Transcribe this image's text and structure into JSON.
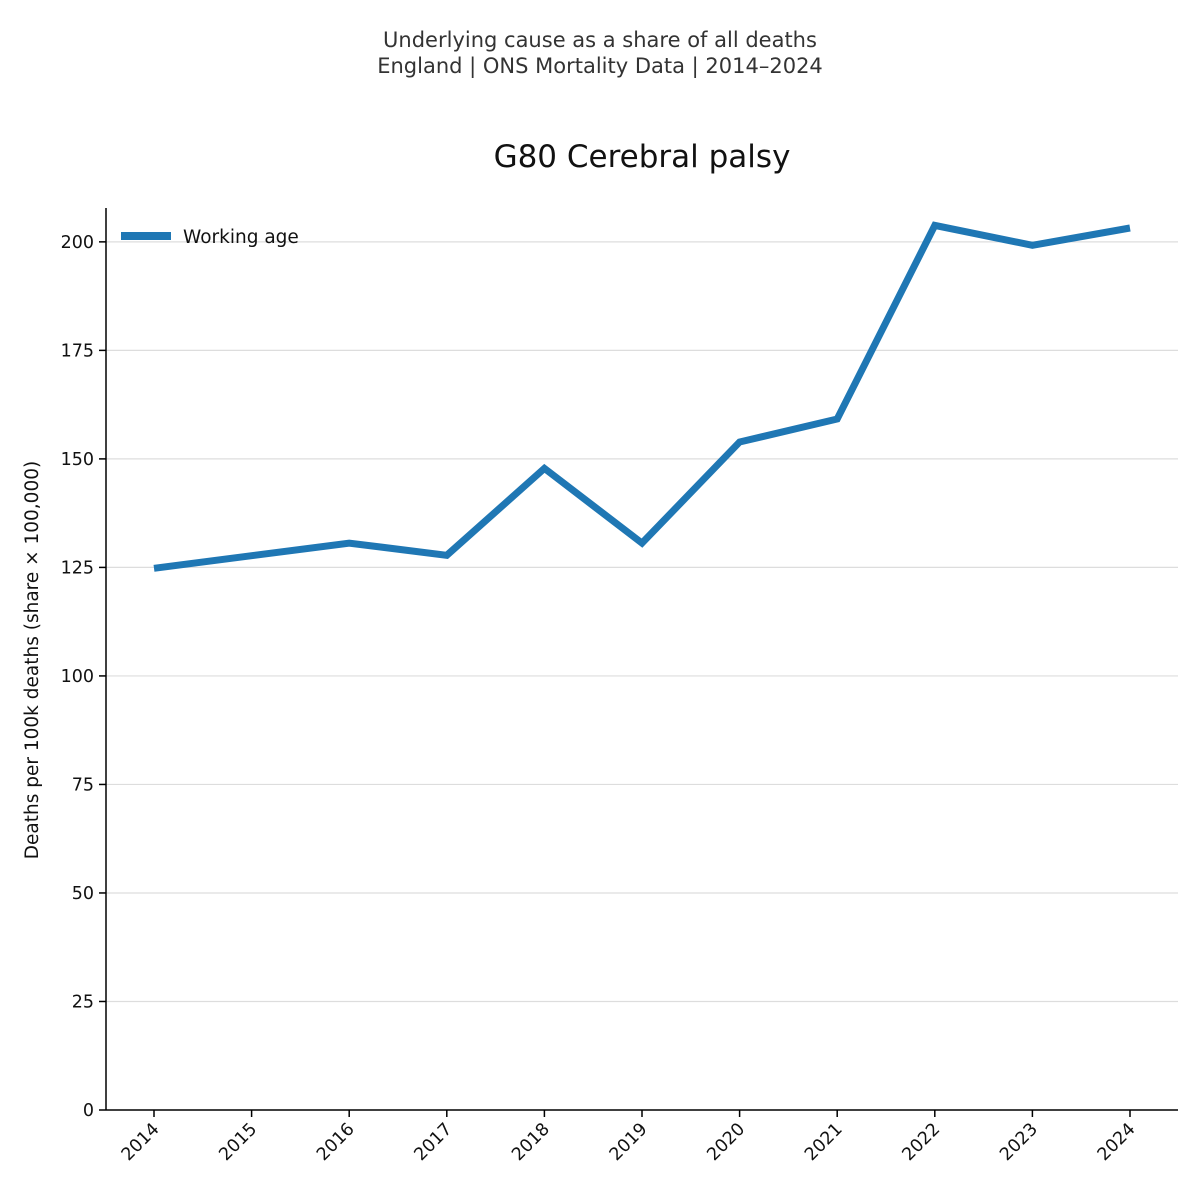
{
  "header": {
    "suptitle_line1": "Underlying cause as a share of all deaths",
    "suptitle_line2": "England | ONS Mortality Data | 2014–2024"
  },
  "chart_data": {
    "type": "line",
    "title": "G80 Cerebral palsy",
    "xlabel": "",
    "ylabel": "Deaths per 100k deaths (share × 100,000)",
    "x": [
      "2014",
      "2015",
      "2016",
      "2017",
      "2018",
      "2019",
      "2020",
      "2021",
      "2022",
      "2023",
      "2024"
    ],
    "series": [
      {
        "name": "Working age",
        "color": "#1f77b4",
        "values": [
          124.8,
          127.7,
          130.6,
          127.8,
          147.8,
          130.6,
          153.9,
          159.2,
          203.8,
          199.2,
          203.2
        ]
      }
    ],
    "ylim": [
      0,
      207.8
    ],
    "yticks": [
      0,
      25,
      50,
      75,
      100,
      125,
      150,
      175,
      200
    ],
    "grid": "horizontal",
    "legend_position": "top-left"
  }
}
